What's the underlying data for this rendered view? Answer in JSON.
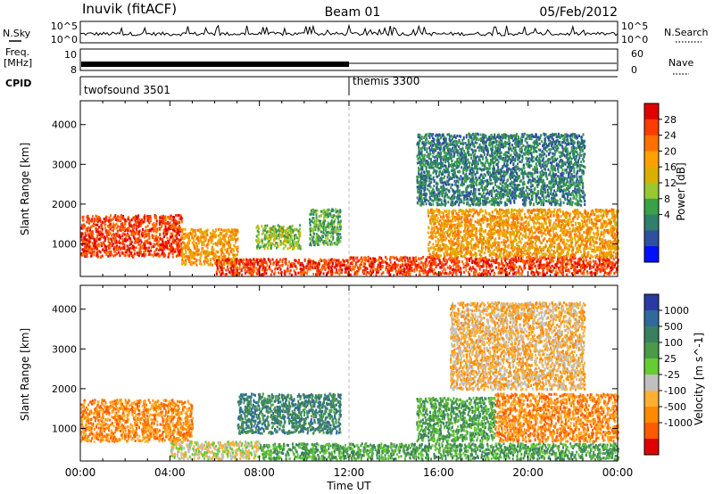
{
  "header": {
    "station": "Inuvik (fitACF)",
    "beam": "Beam 01",
    "date": "05/Feb/2012"
  },
  "nsky": {
    "label": "N.Sky",
    "left_ticks": [
      "10^5",
      "10^0"
    ],
    "right_ticks": [
      "10^5",
      "10^0"
    ],
    "right_label": "N.Search"
  },
  "freq": {
    "label_line1": "Freq.",
    "label_line2": "[MHz]",
    "left_ticks": [
      "10",
      "8"
    ],
    "right_ticks": [
      "60",
      "0"
    ],
    "right_label": "Nave"
  },
  "cpid": {
    "label": "CPID",
    "segments": [
      {
        "name": "twofsound 3501",
        "start_hour": 0
      },
      {
        "name": "themis 3300",
        "start_hour": 12
      }
    ]
  },
  "time_axis": {
    "ticks": [
      "00:00",
      "04:00",
      "08:00",
      "12:00",
      "16:00",
      "20:00",
      "00:00"
    ],
    "tick_hours": [
      0,
      4,
      8,
      12,
      16,
      20,
      24
    ],
    "xlabel": "Time UT"
  },
  "chart_data": [
    {
      "type": "heatmap",
      "title": "",
      "xlabel": "Time UT",
      "ylabel": "Slant Range [km]",
      "xlim": [
        0,
        24
      ],
      "ylim": [
        180,
        4600
      ],
      "yticks": [
        1000,
        2000,
        3000,
        4000
      ],
      "colorbar": {
        "label": "Power [dB]",
        "ticks": [
          "28",
          "24",
          "20",
          "16",
          "12",
          "8",
          "4"
        ],
        "colors": [
          "#e00000",
          "#ff3a00",
          "#ff7000",
          "#ffa000",
          "#d8b000",
          "#9ac830",
          "#3aa04a",
          "#2f7f6a",
          "#2f4fa0",
          "#0010ff"
        ]
      },
      "scatter_regions": [
        {
          "hours": [
            0.0,
            4.5
          ],
          "range_km": [
            700,
            1750
          ],
          "value": 26
        },
        {
          "hours": [
            4.5,
            7.0
          ],
          "range_km": [
            500,
            1400
          ],
          "value": 20
        },
        {
          "hours": [
            6.0,
            12.0
          ],
          "range_km": [
            250,
            650
          ],
          "value": 27
        },
        {
          "hours": [
            7.8,
            9.8
          ],
          "range_km": [
            900,
            1500
          ],
          "value": 14
        },
        {
          "hours": [
            10.2,
            11.6
          ],
          "range_km": [
            1000,
            1900
          ],
          "value": 12
        },
        {
          "hours": [
            12.0,
            24.0
          ],
          "range_km": [
            250,
            700
          ],
          "value": 26
        },
        {
          "hours": [
            15.5,
            24.0
          ],
          "range_km": [
            700,
            1900
          ],
          "value": 22
        },
        {
          "hours": [
            15.0,
            22.5
          ],
          "range_km": [
            2000,
            3800
          ],
          "value": 8
        }
      ]
    },
    {
      "type": "heatmap",
      "title": "",
      "xlabel": "Time UT",
      "ylabel": "Slant Range [km]",
      "xlim": [
        0,
        24
      ],
      "ylim": [
        180,
        4600
      ],
      "yticks": [
        1000,
        2000,
        3000,
        4000
      ],
      "colorbar": {
        "label": "Velocity [m s^-1]",
        "ticks": [
          "1000",
          "500",
          "100",
          "25",
          "-25",
          "-100",
          "-500",
          "-1000"
        ],
        "colors": [
          "#2a3aa0",
          "#2f6a9a",
          "#3a8060",
          "#4a9a4a",
          "#66cc33",
          "#c0c0c0",
          "#ffb030",
          "#ff8a00",
          "#ff5a00",
          "#e00000"
        ]
      },
      "scatter_regions": [
        {
          "hours": [
            0.0,
            5.0
          ],
          "range_km": [
            700,
            1750
          ],
          "value": -200
        },
        {
          "hours": [
            4.0,
            8.0
          ],
          "range_km": [
            250,
            700
          ],
          "value": 0
        },
        {
          "hours": [
            7.0,
            11.6
          ],
          "range_km": [
            900,
            1900
          ],
          "value": 200
        },
        {
          "hours": [
            8.0,
            24.0
          ],
          "range_km": [
            250,
            650
          ],
          "value": 80
        },
        {
          "hours": [
            15.0,
            18.5
          ],
          "range_km": [
            700,
            1800
          ],
          "value": 120
        },
        {
          "hours": [
            18.5,
            24.0
          ],
          "range_km": [
            700,
            1900
          ],
          "value": -300
        },
        {
          "hours": [
            16.5,
            22.5
          ],
          "range_km": [
            2000,
            4200
          ],
          "value": -150
        }
      ]
    }
  ]
}
